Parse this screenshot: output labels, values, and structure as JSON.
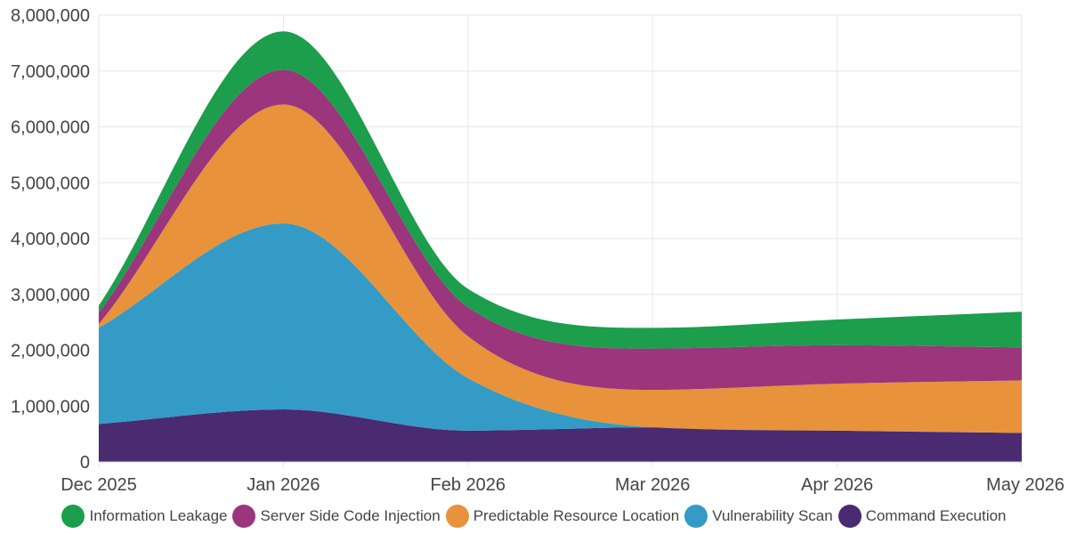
{
  "chart_data": {
    "type": "area",
    "stacked": true,
    "categories": [
      "Dec 2025",
      "Jan 2026",
      "Feb 2026",
      "Mar 2026",
      "Apr 2026",
      "May 2026"
    ],
    "ylim": [
      0,
      8000000
    ],
    "yticks": [
      "0",
      "1,000,000",
      "2,000,000",
      "3,000,000",
      "4,000,000",
      "5,000,000",
      "6,000,000",
      "7,000,000",
      "8,000,000"
    ],
    "grid": true,
    "legend_position": "bottom",
    "series": [
      {
        "name": "Command Execution",
        "color": "#4a2a70",
        "values": [
          680000,
          940000,
          560000,
          620000,
          560000,
          520000
        ]
      },
      {
        "name": "Vulnerability Scan",
        "color": "#339bc6",
        "values": [
          1720000,
          3330000,
          940000,
          0,
          0,
          0
        ]
      },
      {
        "name": "Predictable Resource Location",
        "color": "#e8923b",
        "values": [
          70000,
          2130000,
          750000,
          670000,
          840000,
          940000
        ]
      },
      {
        "name": "Server Side Code Injection",
        "color": "#9b357c",
        "values": [
          200000,
          620000,
          520000,
          740000,
          690000,
          590000
        ]
      },
      {
        "name": "Information Leakage",
        "color": "#1c9e4c",
        "values": [
          130000,
          690000,
          330000,
          370000,
          460000,
          640000
        ]
      }
    ]
  },
  "legend": [
    {
      "label": "Information Leakage",
      "color": "#1c9e4c"
    },
    {
      "label": "Server Side Code Injection",
      "color": "#9b357c"
    },
    {
      "label": "Predictable Resource Location",
      "color": "#e8923b"
    },
    {
      "label": "Vulnerability Scan",
      "color": "#339bc6"
    },
    {
      "label": "Command Execution",
      "color": "#4a2a70"
    }
  ]
}
